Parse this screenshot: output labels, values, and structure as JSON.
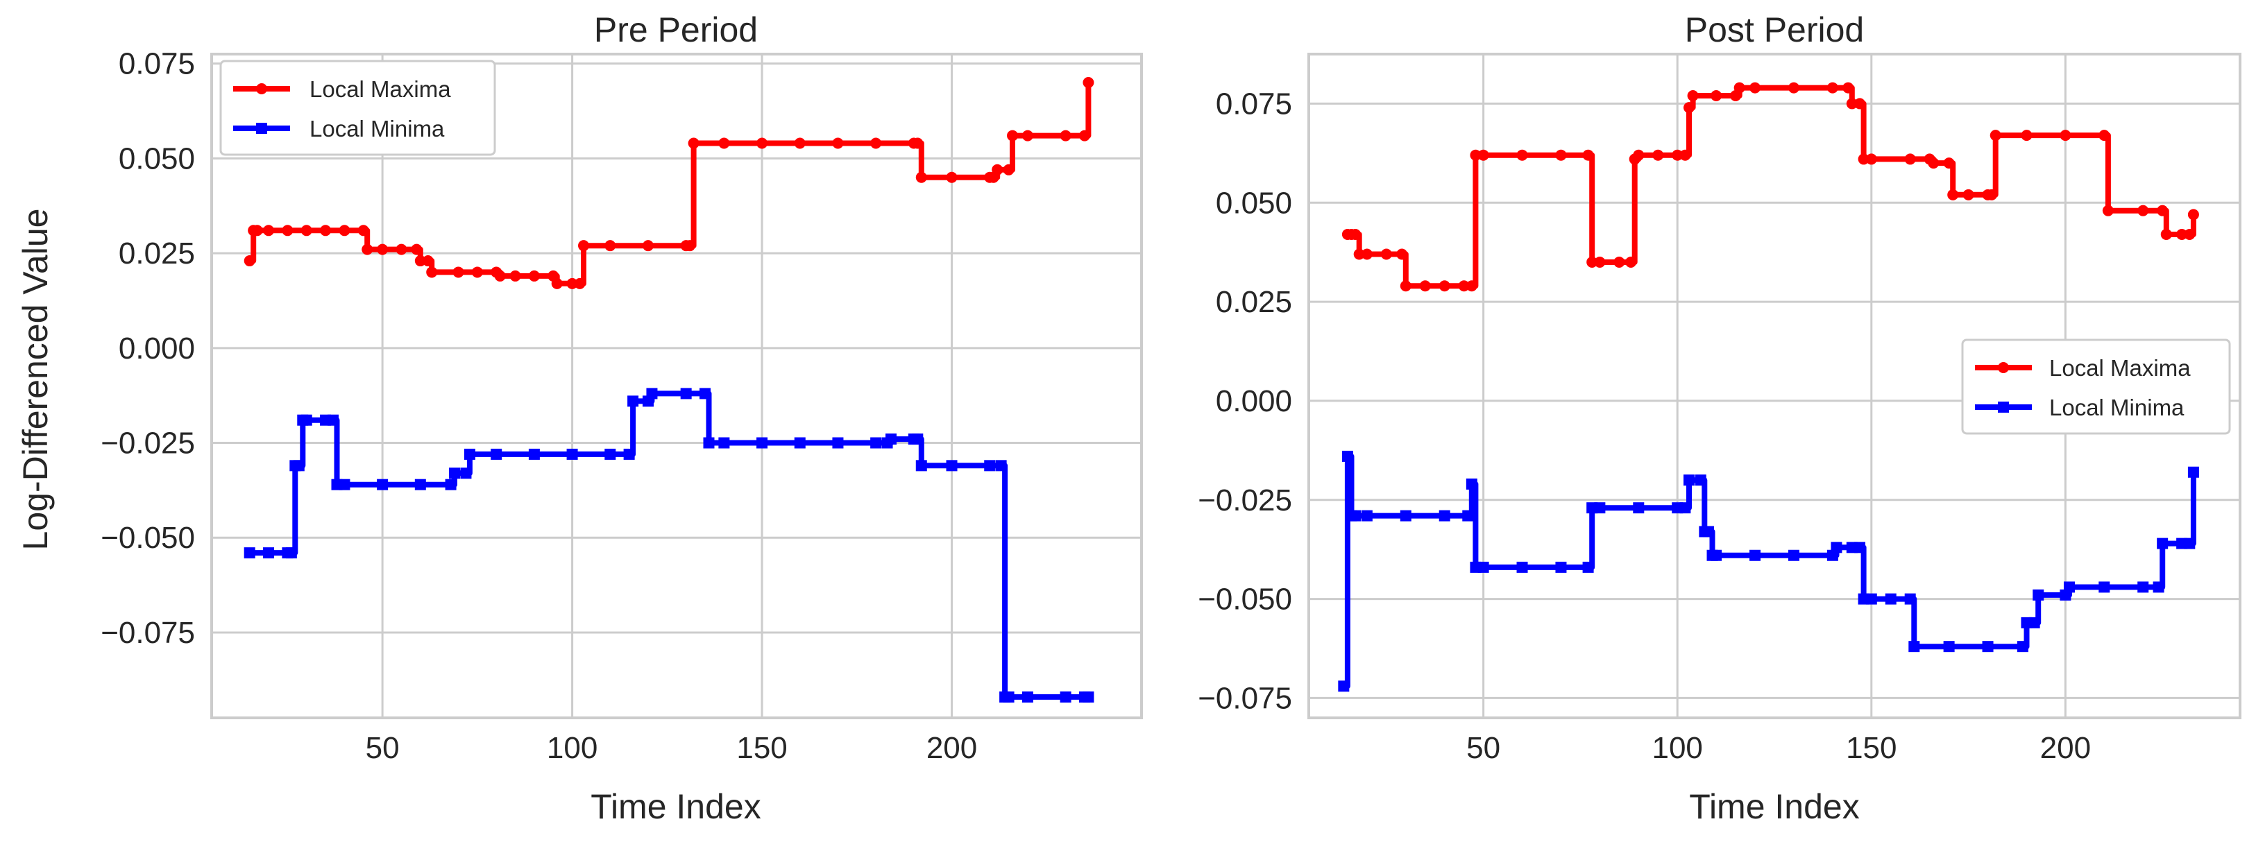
{
  "figure": {
    "ylabel": "Log-Differenced Value"
  },
  "legend": {
    "max_label": "Local Maxima",
    "min_label": "Local Minima"
  },
  "colors": {
    "max": "#ff0000",
    "min": "#0000ff",
    "grid": "#cccccc",
    "frame": "#cccccc",
    "text": "#262626"
  },
  "chart_data": [
    {
      "type": "line",
      "title": "Pre Period",
      "xlabel": "Time Index",
      "ylabel": "Log-Differenced Value",
      "xlim": [
        5,
        250
      ],
      "ylim": [
        -0.0975,
        0.0775
      ],
      "xticks": [
        50,
        100,
        150,
        200
      ],
      "yticks": [
        -0.075,
        -0.05,
        -0.025,
        0.0,
        0.025,
        0.05,
        0.075
      ],
      "ytick_labels": [
        "−0.075",
        "−0.050",
        "−0.025",
        "0.000",
        "0.025",
        "0.050",
        "0.075"
      ],
      "grid": true,
      "legend_position": "upper-left",
      "series": [
        {
          "name": "Local Maxima",
          "color": "#ff0000",
          "marker": "circle",
          "x": [
            15,
            16,
            17,
            20,
            25,
            30,
            35,
            40,
            45,
            46,
            50,
            55,
            59,
            60,
            62,
            63,
            70,
            75,
            80,
            81,
            85,
            90,
            95,
            96,
            100,
            102,
            103,
            110,
            120,
            130,
            131,
            132,
            140,
            150,
            160,
            170,
            180,
            190,
            191,
            192,
            200,
            210,
            211,
            212,
            215,
            216,
            220,
            230,
            235,
            236
          ],
          "y": [
            0.023,
            0.031,
            0.031,
            0.031,
            0.031,
            0.031,
            0.031,
            0.031,
            0.031,
            0.026,
            0.026,
            0.026,
            0.026,
            0.023,
            0.023,
            0.02,
            0.02,
            0.02,
            0.02,
            0.019,
            0.019,
            0.019,
            0.019,
            0.017,
            0.017,
            0.017,
            0.027,
            0.027,
            0.027,
            0.027,
            0.027,
            0.054,
            0.054,
            0.054,
            0.054,
            0.054,
            0.054,
            0.054,
            0.054,
            0.045,
            0.045,
            0.045,
            0.045,
            0.047,
            0.047,
            0.056,
            0.056,
            0.056,
            0.056,
            0.07
          ]
        },
        {
          "name": "Local Minima",
          "color": "#0000ff",
          "marker": "square",
          "x": [
            15,
            20,
            25,
            26,
            27,
            28,
            29,
            30,
            35,
            37,
            38,
            40,
            50,
            60,
            68,
            69,
            72,
            73,
            80,
            90,
            100,
            110,
            115,
            116,
            120,
            121,
            130,
            135,
            136,
            140,
            150,
            160,
            170,
            180,
            183,
            184,
            190,
            191,
            192,
            200,
            210,
            213,
            214,
            215,
            220,
            230,
            235,
            236
          ],
          "y": [
            -0.054,
            -0.054,
            -0.054,
            -0.054,
            -0.031,
            -0.031,
            -0.019,
            -0.019,
            -0.019,
            -0.019,
            -0.036,
            -0.036,
            -0.036,
            -0.036,
            -0.036,
            -0.033,
            -0.033,
            -0.028,
            -0.028,
            -0.028,
            -0.028,
            -0.028,
            -0.028,
            -0.014,
            -0.014,
            -0.012,
            -0.012,
            -0.012,
            -0.025,
            -0.025,
            -0.025,
            -0.025,
            -0.025,
            -0.025,
            -0.025,
            -0.024,
            -0.024,
            -0.024,
            -0.031,
            -0.031,
            -0.031,
            -0.031,
            -0.092,
            -0.092,
            -0.092,
            -0.092,
            -0.092,
            -0.092
          ]
        }
      ]
    },
    {
      "type": "line",
      "title": "Post Period",
      "xlabel": "Time Index",
      "ylabel": "",
      "xlim": [
        5,
        245
      ],
      "ylim": [
        -0.08,
        0.0875
      ],
      "xticks": [
        50,
        100,
        150,
        200
      ],
      "yticks": [
        -0.075,
        -0.05,
        -0.025,
        0.0,
        0.025,
        0.05,
        0.075
      ],
      "ytick_labels": [
        "−0.075",
        "−0.050",
        "−0.025",
        "0.000",
        "0.025",
        "0.050",
        "0.075"
      ],
      "grid": true,
      "legend_position": "center-right",
      "series": [
        {
          "name": "Local Maxima",
          "color": "#ff0000",
          "marker": "circle",
          "x": [
            15,
            16,
            17,
            18,
            20,
            25,
            29,
            30,
            35,
            40,
            45,
            47,
            48,
            50,
            60,
            70,
            77,
            78,
            80,
            85,
            88,
            89,
            90,
            95,
            100,
            102,
            103,
            104,
            110,
            115,
            116,
            120,
            130,
            140,
            144,
            145,
            147,
            148,
            150,
            160,
            165,
            166,
            170,
            171,
            175,
            180,
            181,
            182,
            190,
            200,
            210,
            211,
            220,
            225,
            226,
            230,
            232,
            233
          ],
          "y": [
            0.042,
            0.042,
            0.042,
            0.037,
            0.037,
            0.037,
            0.037,
            0.029,
            0.029,
            0.029,
            0.029,
            0.029,
            0.062,
            0.062,
            0.062,
            0.062,
            0.062,
            0.035,
            0.035,
            0.035,
            0.035,
            0.061,
            0.062,
            0.062,
            0.062,
            0.062,
            0.074,
            0.077,
            0.077,
            0.077,
            0.079,
            0.079,
            0.079,
            0.079,
            0.079,
            0.075,
            0.075,
            0.061,
            0.061,
            0.061,
            0.061,
            0.06,
            0.06,
            0.052,
            0.052,
            0.052,
            0.052,
            0.067,
            0.067,
            0.067,
            0.067,
            0.048,
            0.048,
            0.048,
            0.042,
            0.042,
            0.042,
            0.047
          ]
        },
        {
          "name": "Local Minima",
          "color": "#0000ff",
          "marker": "square",
          "x": [
            14,
            15,
            16,
            17,
            20,
            30,
            40,
            46,
            47,
            48,
            50,
            60,
            70,
            77,
            78,
            80,
            90,
            100,
            102,
            103,
            106,
            107,
            108,
            109,
            110,
            120,
            130,
            140,
            141,
            145,
            147,
            148,
            150,
            155,
            160,
            161,
            170,
            180,
            189,
            190,
            192,
            193,
            200,
            201,
            210,
            220,
            224,
            225,
            230,
            232,
            233
          ],
          "y": [
            -0.072,
            -0.014,
            -0.029,
            -0.029,
            -0.029,
            -0.029,
            -0.029,
            -0.029,
            -0.021,
            -0.042,
            -0.042,
            -0.042,
            -0.042,
            -0.042,
            -0.027,
            -0.027,
            -0.027,
            -0.027,
            -0.027,
            -0.02,
            -0.02,
            -0.033,
            -0.033,
            -0.039,
            -0.039,
            -0.039,
            -0.039,
            -0.039,
            -0.037,
            -0.037,
            -0.037,
            -0.05,
            -0.05,
            -0.05,
            -0.05,
            -0.062,
            -0.062,
            -0.062,
            -0.062,
            -0.056,
            -0.056,
            -0.049,
            -0.049,
            -0.047,
            -0.047,
            -0.047,
            -0.047,
            -0.036,
            -0.036,
            -0.036,
            -0.018
          ]
        }
      ]
    }
  ]
}
